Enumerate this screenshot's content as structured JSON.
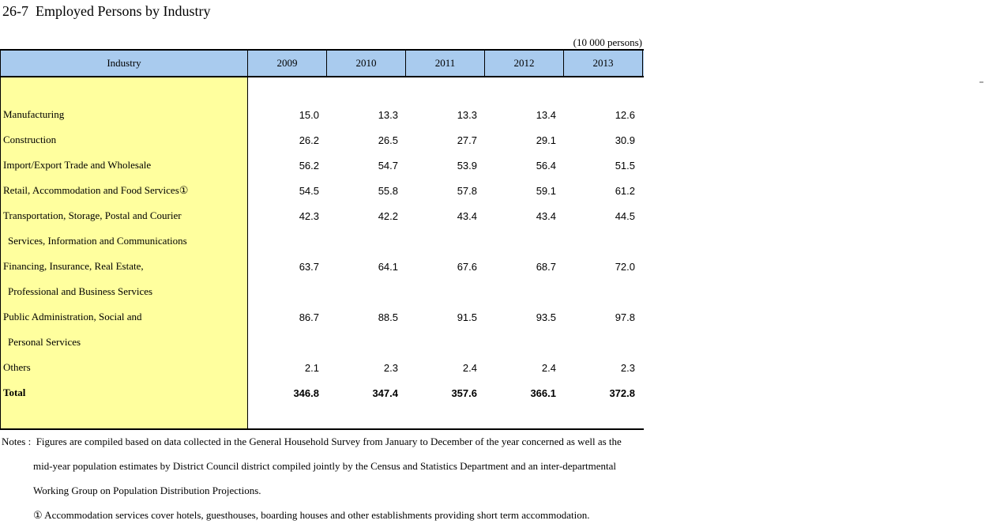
{
  "page": {
    "title": "26-7  Employed Persons by Industry",
    "unit_label": "(10 000 persons)"
  },
  "colors": {
    "header_bg": "#a9cbee",
    "industry_bg": "#ffff9e",
    "border": "#000000"
  },
  "table": {
    "header": {
      "industry_label": "Industry",
      "years": [
        "2009",
        "2010",
        "2011",
        "2012",
        "2013"
      ]
    },
    "rows": [
      {
        "label": "Manufacturing",
        "values": [
          "15.0",
          "13.3",
          "13.3",
          "13.4",
          "12.6"
        ]
      },
      {
        "label": "Construction",
        "values": [
          "26.2",
          "26.5",
          "27.7",
          "29.1",
          "30.9"
        ]
      },
      {
        "label": "Import/Export Trade and Wholesale",
        "values": [
          "56.2",
          "54.7",
          "53.9",
          "56.4",
          "51.5"
        ]
      },
      {
        "label": "Retail, Accommodation and Food Services①",
        "values": [
          "54.5",
          "55.8",
          "57.8",
          "59.1",
          "61.2"
        ]
      },
      {
        "label": "Transportation, Storage, Postal and Courier",
        "values": [
          "42.3",
          "42.2",
          "43.4",
          "43.4",
          "44.5"
        ]
      },
      {
        "label": "Services, Information and Communications",
        "continuation": true,
        "values": [
          "",
          "",
          "",
          "",
          ""
        ]
      },
      {
        "label": "Financing, Insurance, Real Estate,",
        "values": [
          "63.7",
          "64.1",
          "67.6",
          "68.7",
          "72.0"
        ]
      },
      {
        "label": "Professional and Business Services",
        "continuation": true,
        "values": [
          "",
          "",
          "",
          "",
          ""
        ]
      },
      {
        "label": "Public Administration, Social and",
        "values": [
          "86.7",
          "88.5",
          "91.5",
          "93.5",
          "97.8"
        ]
      },
      {
        "label": "Personal Services",
        "continuation": true,
        "values": [
          "",
          "",
          "",
          "",
          ""
        ]
      },
      {
        "label": "Others",
        "values": [
          "2.1",
          "2.3",
          "2.4",
          "2.4",
          "2.3"
        ]
      },
      {
        "label": "Total",
        "bold": true,
        "values": [
          "346.8",
          "347.4",
          "357.6",
          "366.1",
          "372.8"
        ]
      }
    ]
  },
  "notes": {
    "line1": "Notes :  Figures are compiled based on data collected in the General Household Survey from January to December of the year concerned as well as the",
    "line2": "mid-year population estimates by District Council district compiled jointly by the Census and Statistics Department and an inter-departmental",
    "line3": "Working Group on Population Distribution Projections.",
    "line4": "① Accommodation services cover hotels, guesthouses, boarding houses and other establishments providing short term accommodation."
  }
}
